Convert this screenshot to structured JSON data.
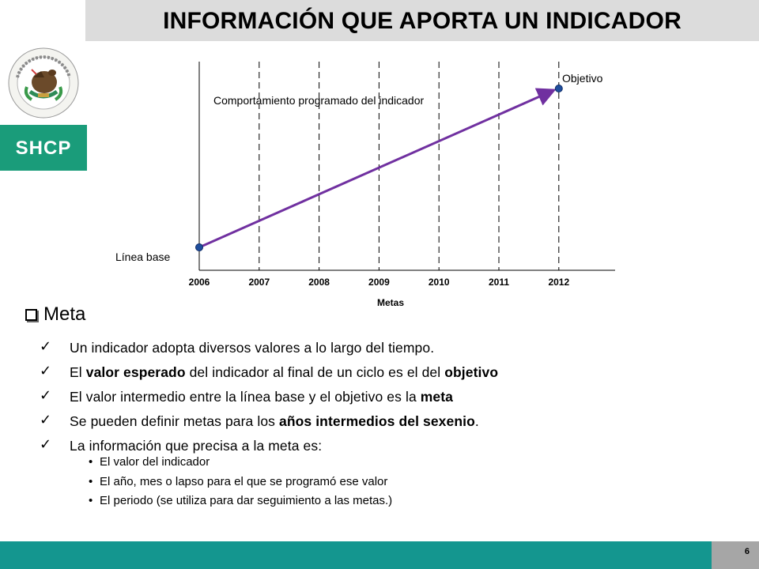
{
  "slide": {
    "title": "INFORMACIÓN QUE APORTA UN INDICADOR",
    "logo_text": "SHCP",
    "page_number": "6",
    "colors": {
      "title_bar": "#dcdcdc",
      "logo_green": "#1a9c7a",
      "footer_teal": "#14968f",
      "page_box": "#a6a6a6",
      "trend_line": "#7030a0",
      "marker": "#1f4e9c"
    }
  },
  "chart_data": {
    "type": "line",
    "categories": [
      "2006",
      "2007",
      "2008",
      "2009",
      "2010",
      "2011",
      "2012"
    ],
    "xlabel": "Metas",
    "ylabel": "",
    "series": [
      {
        "x": [
          "2006",
          "2012"
        ]
      }
    ],
    "annotations": {
      "start": "Línea base",
      "end": "Objetivo",
      "line": "Comportamiento programado del indicador"
    },
    "grid": "vertical dashed lines at each year"
  },
  "content": {
    "section_title": "Meta",
    "checks": [
      {
        "parts": [
          {
            "t": "Un indicador adopta diversos valores a lo largo del tiempo.",
            "b": false
          }
        ]
      },
      {
        "parts": [
          {
            "t": "El ",
            "b": false
          },
          {
            "t": "valor esperado",
            "b": true
          },
          {
            "t": " del indicador al final de un ciclo es el del ",
            "b": false
          },
          {
            "t": "objetivo",
            "b": true
          }
        ]
      },
      {
        "parts": [
          {
            "t": "El valor intermedio entre la línea base y el objetivo es la ",
            "b": false
          },
          {
            "t": "meta",
            "b": true
          }
        ]
      },
      {
        "parts": [
          {
            "t": "Se pueden definir metas para los ",
            "b": false
          },
          {
            "t": "años intermedios del sexenio",
            "b": true
          },
          {
            "t": ".",
            "b": false
          }
        ]
      },
      {
        "parts": [
          {
            "t": "La información que precisa a la meta es:",
            "b": false
          }
        ]
      }
    ],
    "bullets": [
      "El valor del indicador",
      "El año, mes o lapso para el que se programó ese valor",
      "El periodo (se utiliza para dar seguimiento a las metas.)"
    ]
  }
}
